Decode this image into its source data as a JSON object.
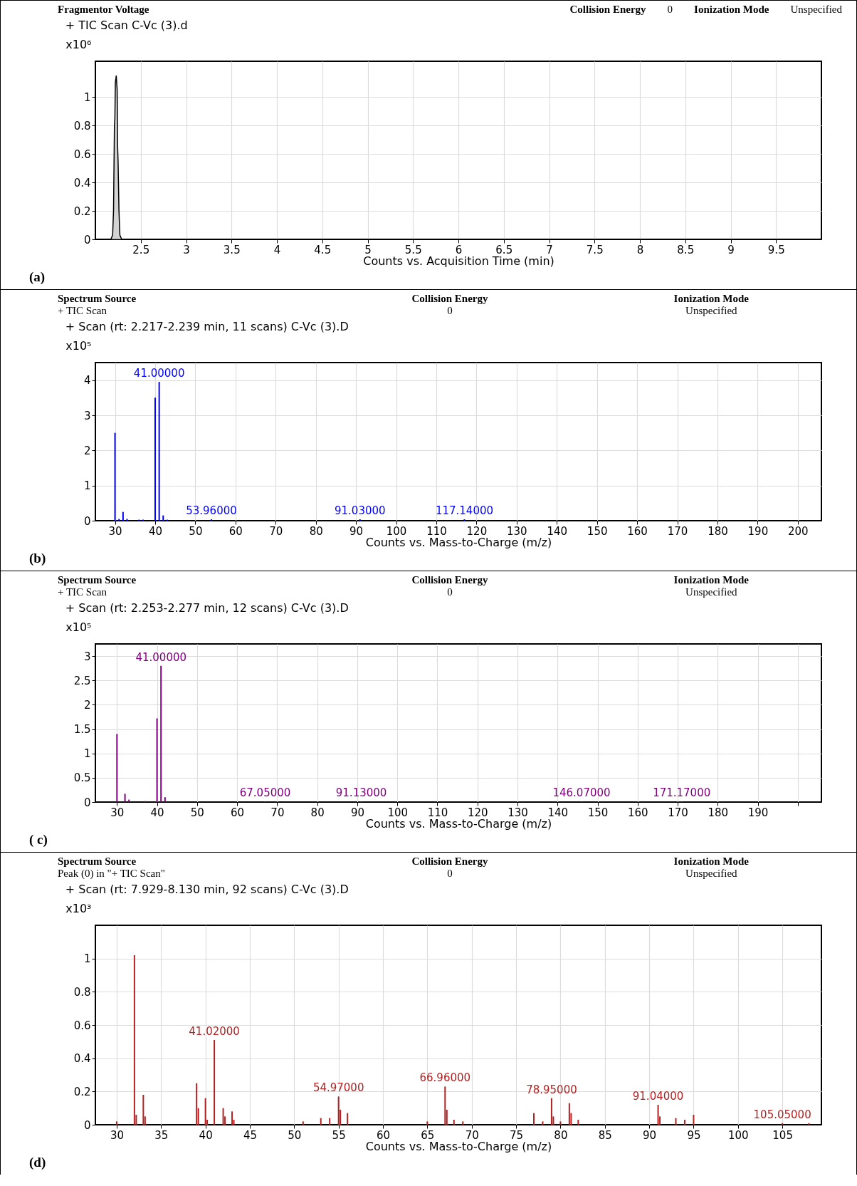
{
  "chart_data": [
    {
      "type": "area",
      "title": "+ TIC Scan C-Vc (3).d",
      "xlabel": "Counts vs. Acquisition Time (min)",
      "ylabel": "x10⁶",
      "annotations": [
        "Fragmentor Voltage",
        "Collision Energy",
        "0",
        "Ionization Mode",
        "Unspecified",
        "(a)"
      ],
      "x": [
        2.17,
        2.19,
        2.2,
        2.21,
        2.215,
        2.22,
        2.23,
        2.235,
        2.24,
        2.245,
        2.25,
        2.26,
        2.27,
        2.29,
        10
      ],
      "values": [
        0,
        0.03,
        0.2,
        0.8,
        0.85,
        1.1,
        1.15,
        1.1,
        1.05,
        0.65,
        0.55,
        0.2,
        0.03,
        0,
        0
      ],
      "color": "#c0c0c0",
      "xlim": [
        2,
        10
      ],
      "xticks": [
        2.5,
        3,
        3.5,
        4,
        4.5,
        5,
        5.5,
        6,
        6.5,
        7,
        7.5,
        8,
        8.5,
        9,
        9.5
      ],
      "ylim": [
        0,
        1.25
      ],
      "yticks": [
        0,
        0.2,
        0.4,
        0.6,
        0.8,
        1
      ],
      "grid": true
    },
    {
      "type": "bar",
      "title": "+ Scan (rt: 2.217-2.239 min, 11 scans) C-Vc (3).D",
      "xlabel": "Counts vs. Mass-to-Charge (m/z)",
      "ylabel": "x10⁵",
      "annotations": [
        "Spectrum Source",
        "Collision Energy",
        "Ionization Mode",
        "+ TIC Scan",
        "0",
        "Unspecified",
        {
          "text": "41.00000",
          "x": 41,
          "y": 3.95
        },
        {
          "text": "53.96000",
          "x": 54,
          "y": 0.04
        },
        {
          "text": "91.03000",
          "x": 91,
          "y": 0.04
        },
        {
          "text": "117.14000",
          "x": 117,
          "y": 0.04
        },
        "(b)"
      ],
      "x": [
        30,
        31,
        32,
        33,
        36,
        37,
        40,
        41,
        42,
        43,
        54,
        91,
        117
      ],
      "values": [
        2.5,
        0.05,
        0.25,
        0.05,
        0.03,
        0.03,
        3.5,
        3.95,
        0.15,
        0.03,
        0.04,
        0.04,
        0.04
      ],
      "color": "#0000ff",
      "xlim": [
        26,
        205
      ],
      "xticks": [
        30,
        40,
        50,
        60,
        70,
        80,
        90,
        100,
        110,
        120,
        130,
        140,
        150,
        160,
        170,
        180,
        190,
        200
      ],
      "ylim": [
        0,
        4.5
      ],
      "yticks": [
        0,
        1,
        2,
        3,
        4
      ],
      "grid": true
    },
    {
      "type": "bar",
      "title": "+ Scan (rt: 2.253-2.277 min, 12 scans) C-Vc (3).D",
      "xlabel": "Counts vs. Mass-to-Charge (m/z)",
      "ylabel": "x10⁵",
      "annotations": [
        "Spectrum Source",
        "Collision Energy",
        "Ionization Mode",
        "+ TIC Scan",
        "0",
        "Unspecified",
        {
          "text": "41.00000",
          "x": 41,
          "y": 2.8
        },
        {
          "text": "67.05000",
          "x": 67,
          "y": 0.01
        },
        {
          "text": "91.13000",
          "x": 91,
          "y": 0.01
        },
        {
          "text": "146.07000",
          "x": 146,
          "y": 0.01
        },
        {
          "text": "171.17000",
          "x": 171,
          "y": 0.01
        },
        "( c)"
      ],
      "x": [
        30,
        32,
        33,
        37,
        40,
        41,
        42,
        67,
        91,
        146,
        171
      ],
      "values": [
        1.4,
        0.17,
        0.05,
        0.02,
        1.72,
        2.8,
        0.1,
        0.01,
        0.01,
        0.01,
        0.01
      ],
      "color": "#800080",
      "xlim": [
        25.5,
        205
      ],
      "xticks": [
        30,
        40,
        50,
        60,
        70,
        80,
        90,
        100,
        110,
        120,
        130,
        140,
        150,
        160,
        170,
        180,
        190,
        {
          "value": 200,
          "label": null
        }
      ],
      "ylim": [
        0,
        3.25
      ],
      "yticks": [
        0,
        0.5,
        1,
        1.5,
        2,
        2.5,
        3
      ],
      "grid": true
    },
    {
      "type": "bar",
      "title": "+ Scan (rt: 7.929-8.130 min, 92 scans) C-Vc (3).D",
      "xlabel": "Counts vs. Mass-to-Charge (m/z)",
      "ylabel": "x10³",
      "annotations": [
        "Spectrum Source",
        "Collision Energy",
        "Ionization Mode",
        "Peak (0) in \"+ TIC Scan\"",
        "0",
        "Unspecified",
        {
          "text": "41.02000",
          "x": 41,
          "y": 0.51
        },
        {
          "text": "54.97000",
          "x": 55,
          "y": 0.17
        },
        {
          "text": "66.96000",
          "x": 67,
          "y": 0.23
        },
        {
          "text": "78.95000",
          "x": 79,
          "y": 0.16
        },
        {
          "text": "91.04000",
          "x": 91,
          "y": 0.12
        },
        {
          "text": "105.05000",
          "x": 105,
          "y": 0.01
        },
        "(d)"
      ],
      "x": [
        30,
        32,
        32.2,
        33,
        33.2,
        39,
        39.2,
        40,
        40.2,
        41,
        42,
        42.2,
        43,
        43.2,
        51,
        53,
        54,
        55,
        55.2,
        56,
        65,
        67,
        67.2,
        68,
        69,
        77,
        78,
        79,
        79.2,
        80,
        81,
        81.2,
        82,
        91,
        91.2,
        93,
        94,
        95,
        105,
        108
      ],
      "values": [
        0.02,
        1.02,
        0.06,
        0.18,
        0.05,
        0.25,
        0.1,
        0.16,
        0.03,
        0.51,
        0.1,
        0.05,
        0.08,
        0.03,
        0.02,
        0.04,
        0.04,
        0.17,
        0.09,
        0.07,
        0.02,
        0.23,
        0.09,
        0.03,
        0.02,
        0.07,
        0.02,
        0.16,
        0.05,
        0.02,
        0.13,
        0.07,
        0.03,
        0.12,
        0.05,
        0.04,
        0.03,
        0.06,
        0.01,
        0.01
      ],
      "color": "#b22222",
      "xlim": [
        28,
        109
      ],
      "xticks": [
        30,
        35,
        40,
        45,
        50,
        55,
        60,
        65,
        70,
        75,
        80,
        85,
        90,
        95,
        100,
        105
      ],
      "ylim": [
        0,
        1.2
      ],
      "yticks": [
        0,
        0.2,
        0.4,
        0.6,
        0.8,
        1
      ],
      "grid": true
    }
  ]
}
